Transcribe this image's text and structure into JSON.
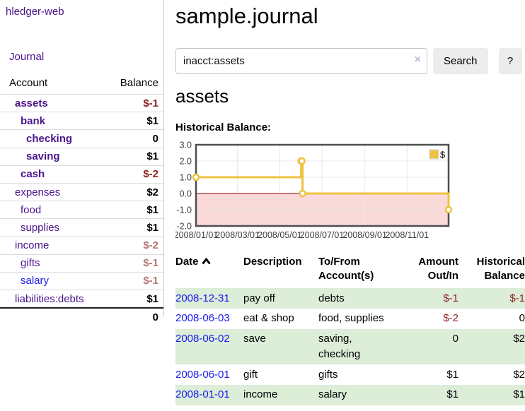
{
  "app": {
    "title": "hledger-web"
  },
  "colors": {
    "link_purple": "#4a148c",
    "link_blue": "#1a1aee",
    "negative_strong": "#8f1f1f",
    "negative_soft": "#b97676",
    "row_green": "#dcedd8",
    "chart_gold": "#edc240",
    "button_bg": "#ececec"
  },
  "sidebar": {
    "journal_link": "Journal",
    "table": {
      "account_header": "Account",
      "balance_header": "Balance",
      "rows": [
        {
          "name": "assets",
          "balance": "$-1",
          "depth": 0,
          "bold": true,
          "tone": "neg",
          "link": "purple"
        },
        {
          "name": "bank",
          "balance": "$1",
          "depth": 1,
          "bold": true,
          "tone": "pos",
          "link": "purple"
        },
        {
          "name": "checking",
          "balance": "0",
          "depth": 2,
          "bold": true,
          "tone": "pos",
          "link": "purple"
        },
        {
          "name": "saving",
          "balance": "$1",
          "depth": 2,
          "bold": true,
          "tone": "pos",
          "link": "purple"
        },
        {
          "name": "cash",
          "balance": "$-2",
          "depth": 1,
          "bold": true,
          "tone": "neg",
          "link": "purple"
        },
        {
          "name": "expenses",
          "balance": "$2",
          "depth": 0,
          "bold": false,
          "tone": "pos",
          "link": "purple"
        },
        {
          "name": "food",
          "balance": "$1",
          "depth": 1,
          "bold": false,
          "tone": "pos",
          "link": "purple"
        },
        {
          "name": "supplies",
          "balance": "$1",
          "depth": 1,
          "bold": false,
          "tone": "pos",
          "link": "purple"
        },
        {
          "name": "income",
          "balance": "$-2",
          "depth": 0,
          "bold": false,
          "tone": "negsoft",
          "link": "purple"
        },
        {
          "name": "gifts",
          "balance": "$-1",
          "depth": 1,
          "bold": false,
          "tone": "negsoft",
          "link": "purple"
        },
        {
          "name": "salary",
          "balance": "$-1",
          "depth": 1,
          "bold": false,
          "tone": "negsoft",
          "link": "blue"
        },
        {
          "name": "liabilities:debts",
          "balance": "$1",
          "depth": 0,
          "bold": false,
          "tone": "pos",
          "link": "purple"
        }
      ],
      "total": "0"
    }
  },
  "main": {
    "title": "sample.journal",
    "search": {
      "value": "inacct:assets",
      "clear_icon": "×",
      "button_label": "Search",
      "help_label": "?"
    },
    "account_heading": "assets"
  },
  "chart_data": {
    "type": "line",
    "title": "Historical Balance:",
    "step": true,
    "x_range": [
      "2008-01-01",
      "2008-12-31"
    ],
    "x_ticks": [
      "2008/01/01",
      "2008/03/01",
      "2008/05/01",
      "2008/07/01",
      "2008/09/01",
      "2008/11/01"
    ],
    "y_ticks": [
      -2,
      -1,
      0,
      1,
      2,
      3
    ],
    "ylim": [
      -2,
      3
    ],
    "series": [
      {
        "name": "$",
        "color": "#edc240",
        "points": [
          [
            "2008-01-01",
            1
          ],
          [
            "2008-06-01",
            2
          ],
          [
            "2008-06-02",
            2
          ],
          [
            "2008-06-03",
            0
          ],
          [
            "2008-12-31",
            -1
          ]
        ]
      }
    ],
    "negative_fill": "#fad9d9",
    "zero_line_color": "#8b0000",
    "grid": true,
    "legend": {
      "label": "$",
      "position": "top-right"
    }
  },
  "register": {
    "headers": {
      "date": "Date",
      "description": "Description",
      "accounts": "To/From Account(s)",
      "amount": "Amount Out/In",
      "balance": "Historical Balance"
    },
    "rows": [
      {
        "date": "2008-12-31",
        "description": "pay off",
        "accounts": "debts",
        "amount": "$-1",
        "amount_neg": true,
        "balance": "$-1",
        "balance_neg": true,
        "shade": true
      },
      {
        "date": "2008-06-03",
        "description": "eat & shop",
        "accounts": "food, supplies",
        "amount": "$-2",
        "amount_neg": true,
        "balance": "0",
        "balance_neg": false,
        "shade": false
      },
      {
        "date": "2008-06-02",
        "description": "save",
        "accounts": "saving, checking",
        "amount": "0",
        "amount_neg": false,
        "balance": "$2",
        "balance_neg": false,
        "shade": true
      },
      {
        "date": "2008-06-01",
        "description": "gift",
        "accounts": "gifts",
        "amount": "$1",
        "amount_neg": false,
        "balance": "$2",
        "balance_neg": false,
        "shade": false
      },
      {
        "date": "2008-01-01",
        "description": "income",
        "accounts": "salary",
        "amount": "$1",
        "amount_neg": false,
        "balance": "$1",
        "balance_neg": false,
        "shade": true
      }
    ]
  }
}
